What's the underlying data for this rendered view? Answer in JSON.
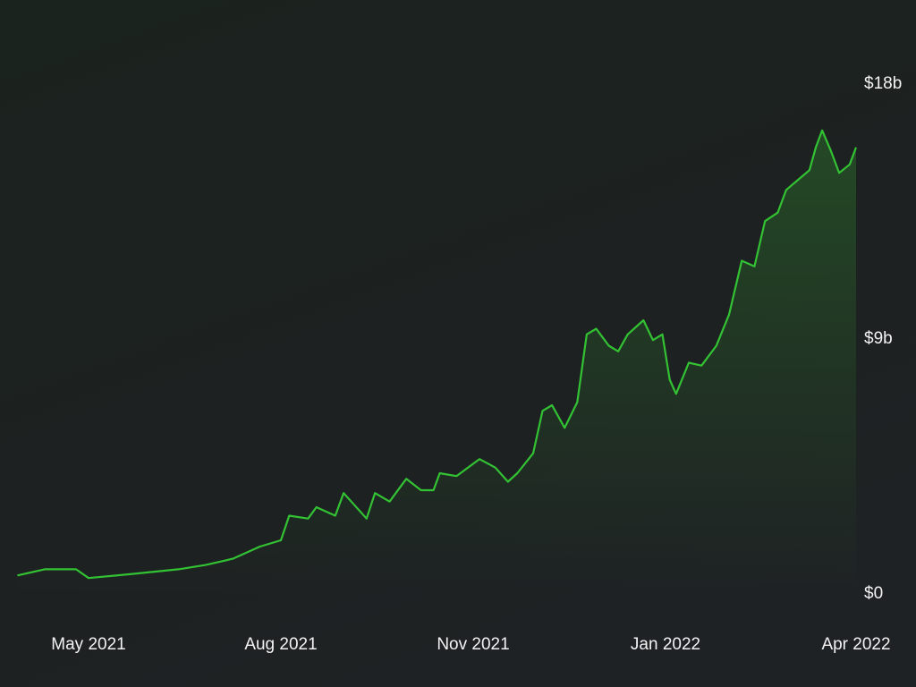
{
  "chart_data": {
    "type": "area",
    "title": "",
    "xlabel": "",
    "ylabel": "",
    "line_color": "#33c233",
    "fill_color": "#2a6a2a",
    "background": "#1d2121",
    "grid": false,
    "ylim": [
      0,
      18
    ],
    "yticks": [
      {
        "value": 0,
        "label": "$0"
      },
      {
        "value": 9,
        "label": "$9b"
      },
      {
        "value": 18,
        "label": "$18b"
      }
    ],
    "xticks": [
      {
        "date": "2021-05-01",
        "label": "May 2021"
      },
      {
        "date": "2021-08-01",
        "label": "Aug 2021"
      },
      {
        "date": "2021-11-01",
        "label": "Nov 2021"
      },
      {
        "date": "2022-01-01",
        "label": "Jan 2022"
      },
      {
        "date": "2022-04-01",
        "label": "Apr 2022"
      }
    ],
    "series": [
      {
        "unit": "billion USD",
        "points": [
          [
            "2021-03-28",
            0.59
          ],
          [
            "2021-04-10",
            0.81
          ],
          [
            "2021-04-25",
            0.81
          ],
          [
            "2021-05-01",
            0.5
          ],
          [
            "2021-05-23",
            0.65
          ],
          [
            "2021-06-13",
            0.81
          ],
          [
            "2021-06-26",
            0.96
          ],
          [
            "2021-07-09",
            1.18
          ],
          [
            "2021-07-22",
            1.61
          ],
          [
            "2021-08-01",
            1.83
          ],
          [
            "2021-08-05",
            2.7
          ],
          [
            "2021-08-14",
            2.6
          ],
          [
            "2021-08-18",
            3.0
          ],
          [
            "2021-08-27",
            2.7
          ],
          [
            "2021-08-31",
            3.5
          ],
          [
            "2021-09-11",
            2.6
          ],
          [
            "2021-09-15",
            3.5
          ],
          [
            "2021-09-22",
            3.2
          ],
          [
            "2021-09-30",
            4.0
          ],
          [
            "2021-10-07",
            3.6
          ],
          [
            "2021-10-13",
            3.6
          ],
          [
            "2021-10-16",
            4.2
          ],
          [
            "2021-10-24",
            4.1
          ],
          [
            "2021-11-03",
            4.7
          ],
          [
            "2021-11-08",
            4.4
          ],
          [
            "2021-11-12",
            3.9
          ],
          [
            "2021-11-15",
            4.2
          ],
          [
            "2021-11-20",
            4.9
          ],
          [
            "2021-11-23",
            6.4
          ],
          [
            "2021-11-26",
            6.6
          ],
          [
            "2021-11-30",
            5.8
          ],
          [
            "2021-12-04",
            6.7
          ],
          [
            "2021-12-07",
            9.1
          ],
          [
            "2021-12-10",
            9.3
          ],
          [
            "2021-12-14",
            8.7
          ],
          [
            "2021-12-17",
            8.5
          ],
          [
            "2021-12-20",
            9.1
          ],
          [
            "2021-12-25",
            9.6
          ],
          [
            "2021-12-28",
            8.9
          ],
          [
            "2021-12-31",
            9.1
          ],
          [
            "2022-01-03",
            7.5
          ],
          [
            "2022-01-06",
            7.0
          ],
          [
            "2022-01-12",
            8.1
          ],
          [
            "2022-01-18",
            8.0
          ],
          [
            "2022-01-25",
            8.7
          ],
          [
            "2022-01-31",
            9.8
          ],
          [
            "2022-02-06",
            11.7
          ],
          [
            "2022-02-12",
            11.5
          ],
          [
            "2022-02-17",
            13.1
          ],
          [
            "2022-02-23",
            13.4
          ],
          [
            "2022-02-27",
            14.2
          ],
          [
            "2022-03-10",
            14.9
          ],
          [
            "2022-03-13",
            15.7
          ],
          [
            "2022-03-16",
            16.3
          ],
          [
            "2022-03-20",
            15.6
          ],
          [
            "2022-03-24",
            14.8
          ],
          [
            "2022-03-29",
            15.1
          ],
          [
            "2022-04-01",
            15.7
          ]
        ]
      }
    ]
  }
}
